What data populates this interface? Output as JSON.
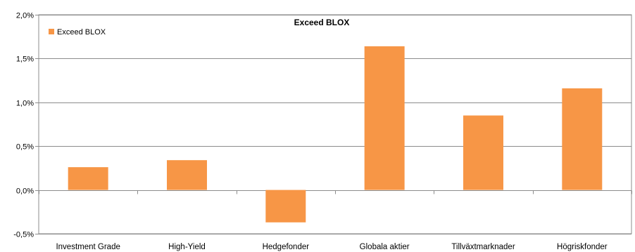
{
  "chart_data": {
    "type": "bar",
    "title": "Exceed BLOX",
    "xlabel": "",
    "ylabel": "",
    "categories": [
      "Investment Grade",
      "High-Yield",
      "Hedgefonder",
      "Globala aktier",
      "Tillväxtmarknader",
      "Högriskfonder"
    ],
    "series": [
      {
        "name": "Exceed BLOX",
        "values": [
          0.26,
          0.34,
          -0.37,
          1.64,
          0.85,
          1.16
        ],
        "color": "#F79646"
      }
    ],
    "ylim": [
      -0.5,
      2.0
    ],
    "yticks": [
      2.0,
      1.5,
      1.0,
      0.5,
      0.0,
      -0.5
    ],
    "ytick_labels": [
      "2,0%",
      "1,5%",
      "1,0%",
      "0,5%",
      "0,0%",
      "-0,5%"
    ],
    "grid": true,
    "legend": {
      "placement": "top-left",
      "entries": [
        "Exceed BLOX"
      ]
    }
  }
}
